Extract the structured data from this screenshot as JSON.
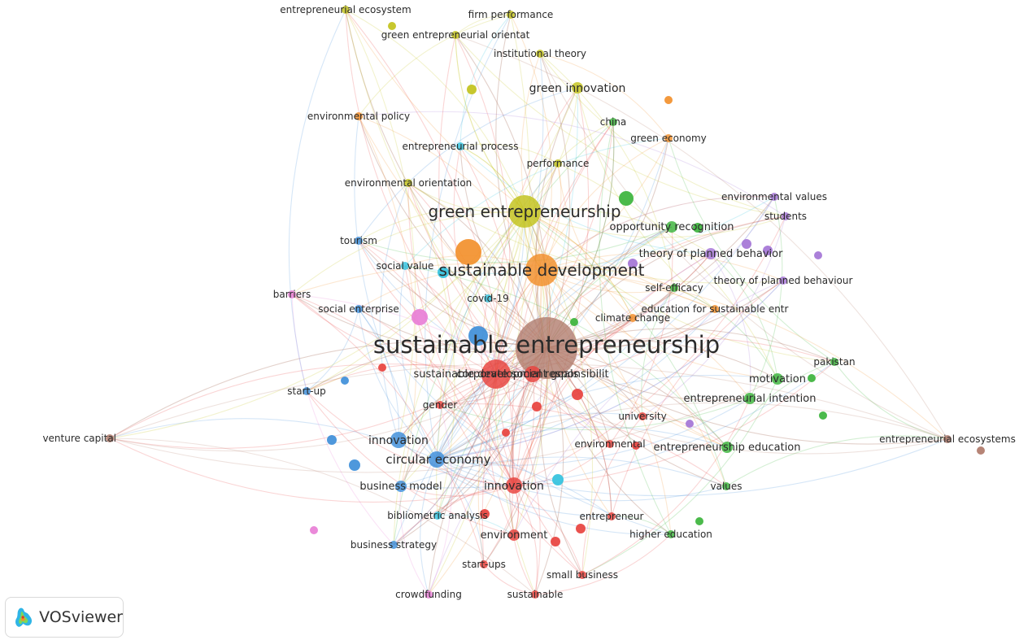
{
  "app": {
    "brand": "VOSviewer",
    "logo_icon": "vosviewer-logo-icon"
  },
  "clusters": {
    "red": "#e8423e",
    "green": "#3cb43c",
    "blue": "#3f8fd9",
    "yellow": "#c2c21c",
    "purple": "#a475d6",
    "cyan": "#33c2de",
    "orange": "#f2902c",
    "brown": "#b07a6a",
    "pink": "#e87fd6"
  },
  "nodes": [
    {
      "id": "sustainable-entrepreneurship",
      "label": "sustainable entrepreneurship",
      "cluster": "brown",
      "weight": 10
    },
    {
      "id": "green-entrepreneurship",
      "label": "green entrepreneurship",
      "cluster": "yellow",
      "weight": 5
    },
    {
      "id": "sustainable-development",
      "label": "sustainable development",
      "cluster": "orange",
      "weight": 5
    },
    {
      "id": "sustainable-development-goals",
      "label": "sustainable development goals",
      "cluster": "red",
      "weight": 4
    },
    {
      "id": "corporate-social-responsibility",
      "label": "corporate social responsibilit",
      "cluster": "red",
      "weight": 3
    },
    {
      "id": "circular-economy",
      "label": "circular economy",
      "cluster": "blue",
      "weight": 3
    },
    {
      "id": "innovation-blue",
      "label": "innovation",
      "cluster": "blue",
      "weight": 3
    },
    {
      "id": "innovation-red",
      "label": "innovation",
      "cluster": "red",
      "weight": 3
    },
    {
      "id": "entrepreneurial-ecosystem",
      "label": "entrepreneurial ecosystem",
      "cluster": "yellow",
      "weight": 1
    },
    {
      "id": "firm-performance",
      "label": "firm performance",
      "cluster": "yellow",
      "weight": 1
    },
    {
      "id": "green-entrepreneurial-orientat",
      "label": "green entrepreneurial orientat",
      "cluster": "yellow",
      "weight": 1
    },
    {
      "id": "institutional-theory",
      "label": "institutional theory",
      "cluster": "yellow",
      "weight": 1
    },
    {
      "id": "green-innovation",
      "label": "green innovation",
      "cluster": "yellow",
      "weight": 2
    },
    {
      "id": "environmental-policy",
      "label": "environmental policy",
      "cluster": "orange",
      "weight": 1
    },
    {
      "id": "china",
      "label": "china",
      "cluster": "green",
      "weight": 1
    },
    {
      "id": "green-economy",
      "label": "green economy",
      "cluster": "orange",
      "weight": 1
    },
    {
      "id": "entrepreneurial-process",
      "label": "entrepreneurial process",
      "cluster": "cyan",
      "weight": 1
    },
    {
      "id": "performance",
      "label": "performance",
      "cluster": "yellow",
      "weight": 1
    },
    {
      "id": "environmental-orientation",
      "label": "environmental orientation",
      "cluster": "yellow",
      "weight": 1
    },
    {
      "id": "environmental-values",
      "label": "environmental values",
      "cluster": "purple",
      "weight": 1
    },
    {
      "id": "students",
      "label": "students",
      "cluster": "purple",
      "weight": 1
    },
    {
      "id": "opportunity-recognition",
      "label": "opportunity recognition",
      "cluster": "green",
      "weight": 2
    },
    {
      "id": "theory-of-planned-behavior",
      "label": "theory of planned behavior",
      "cluster": "purple",
      "weight": 2
    },
    {
      "id": "theory-of-planned-behaviour",
      "label": "theory of planned behaviour",
      "cluster": "purple",
      "weight": 1
    },
    {
      "id": "tourism",
      "label": "tourism",
      "cluster": "blue",
      "weight": 1
    },
    {
      "id": "social-value",
      "label": "social value",
      "cluster": "cyan",
      "weight": 1
    },
    {
      "id": "covid-19",
      "label": "covid-19",
      "cluster": "cyan",
      "weight": 1
    },
    {
      "id": "self-efficacy",
      "label": "self-efficacy",
      "cluster": "green",
      "weight": 1
    },
    {
      "id": "barriers",
      "label": "barriers",
      "cluster": "pink",
      "weight": 1
    },
    {
      "id": "social-enterprise",
      "label": "social enterprise",
      "cluster": "blue",
      "weight": 1
    },
    {
      "id": "climate-change",
      "label": "climate change",
      "cluster": "orange",
      "weight": 1
    },
    {
      "id": "education-for-sustainable-entr",
      "label": "education for sustainable entr",
      "cluster": "orange",
      "weight": 1
    },
    {
      "id": "pakistan",
      "label": "pakistan",
      "cluster": "green",
      "weight": 1
    },
    {
      "id": "motivation",
      "label": "motivation",
      "cluster": "green",
      "weight": 2
    },
    {
      "id": "start-up",
      "label": "start-up",
      "cluster": "blue",
      "weight": 1
    },
    {
      "id": "entrepreneurial-intention",
      "label": "entrepreneurial intention",
      "cluster": "green",
      "weight": 2
    },
    {
      "id": "gender",
      "label": "gender",
      "cluster": "red",
      "weight": 1
    },
    {
      "id": "university",
      "label": "university",
      "cluster": "red",
      "weight": 1
    },
    {
      "id": "venture-capital",
      "label": "venture capital",
      "cluster": "brown",
      "weight": 1
    },
    {
      "id": "entrepreneurial-ecosystems",
      "label": "entrepreneurial ecosystems",
      "cluster": "brown",
      "weight": 1
    },
    {
      "id": "environmental",
      "label": "environmental",
      "cluster": "red",
      "weight": 1
    },
    {
      "id": "entrepreneurship-education",
      "label": "entrepreneurship education",
      "cluster": "green",
      "weight": 2
    },
    {
      "id": "business-model",
      "label": "business model",
      "cluster": "blue",
      "weight": 2
    },
    {
      "id": "values",
      "label": "values",
      "cluster": "green",
      "weight": 1
    },
    {
      "id": "bibliometric-analysis",
      "label": "bibliometric analysis",
      "cluster": "cyan",
      "weight": 1
    },
    {
      "id": "entrepreneur",
      "label": "entrepreneur",
      "cluster": "red",
      "weight": 1
    },
    {
      "id": "environment",
      "label": "environment",
      "cluster": "red",
      "weight": 2
    },
    {
      "id": "higher-education",
      "label": "higher education",
      "cluster": "green",
      "weight": 1
    },
    {
      "id": "business-strategy",
      "label": "business strategy",
      "cluster": "blue",
      "weight": 1
    },
    {
      "id": "start-ups",
      "label": "start-ups",
      "cluster": "red",
      "weight": 1
    },
    {
      "id": "small-business",
      "label": "small business",
      "cluster": "red",
      "weight": 1
    },
    {
      "id": "crowdfunding",
      "label": "crowdfunding",
      "cluster": "pink",
      "weight": 1
    },
    {
      "id": "sustainable",
      "label": "sustainable",
      "cluster": "red",
      "weight": 1
    }
  ]
}
